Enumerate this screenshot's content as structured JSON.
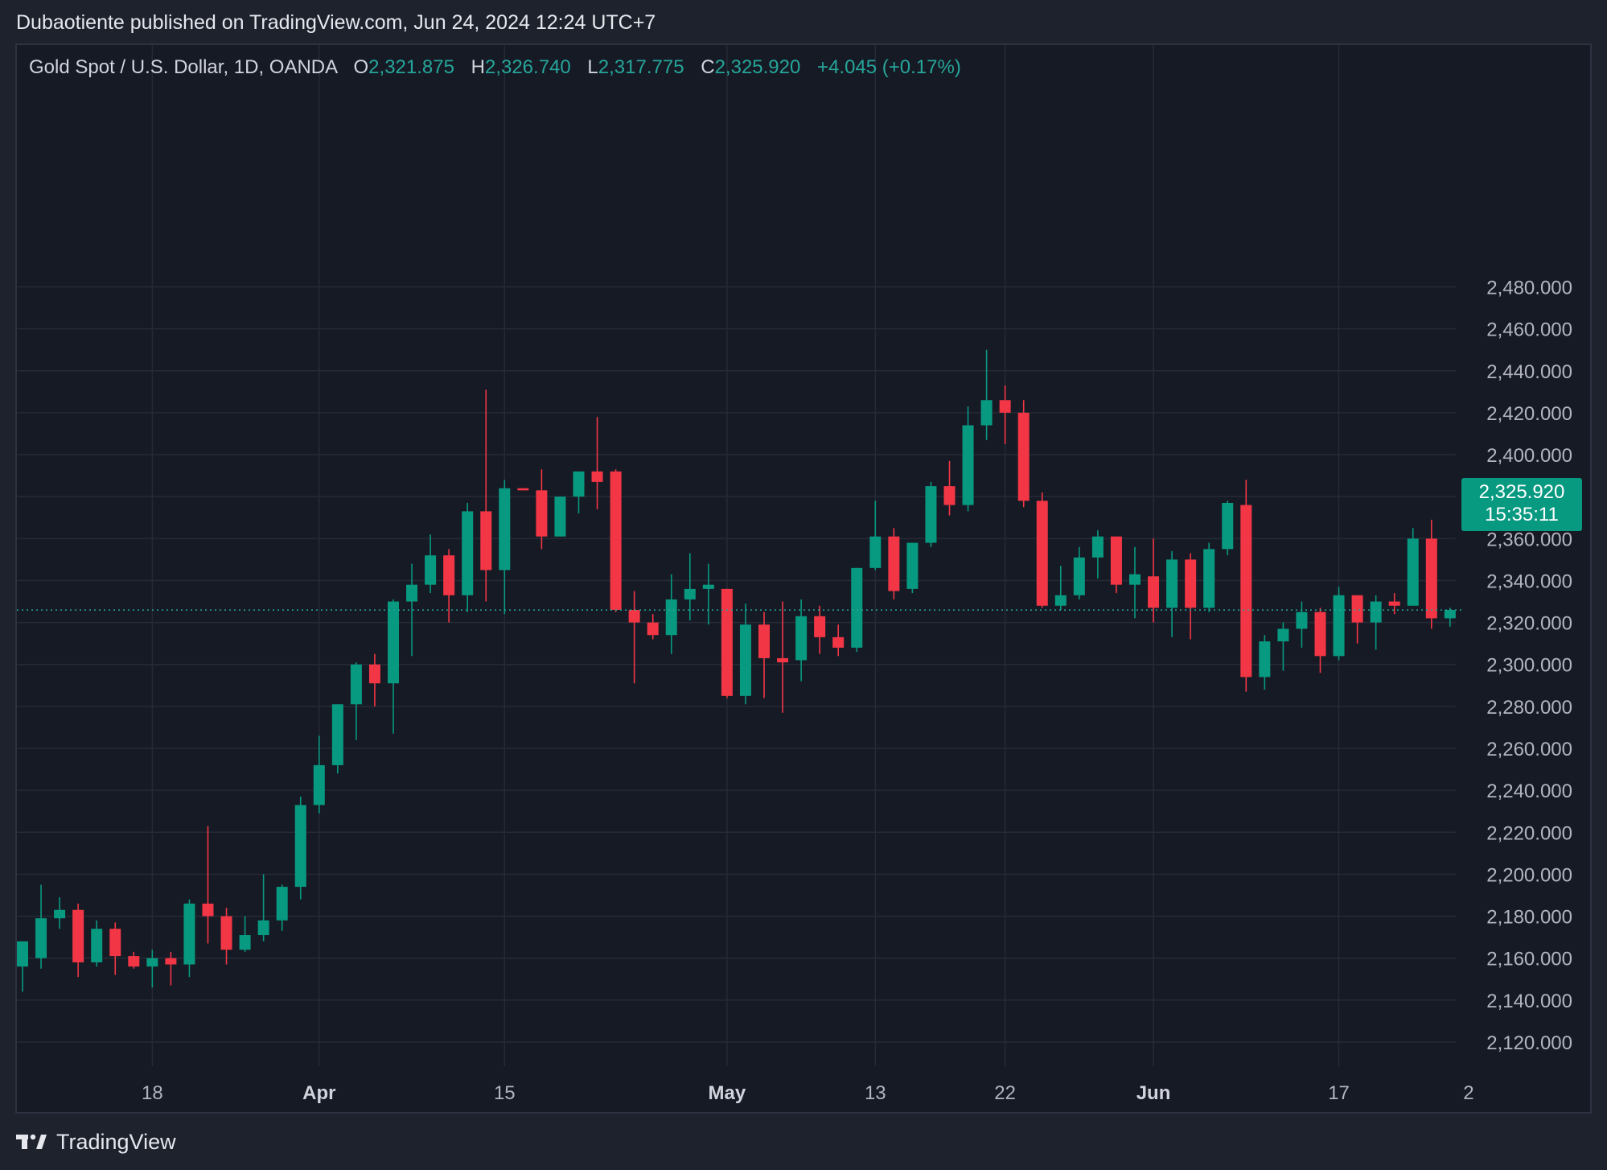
{
  "header": {
    "published_line": "Dubaotiente published on TradingView.com, Jun 24, 2024 12:24 UTC+7"
  },
  "legend": {
    "symbol": "Gold Spot / U.S. Dollar, 1D, OANDA",
    "open_key": "O",
    "open": "2,321.875",
    "high_key": "H",
    "high": "2,326.740",
    "low_key": "L",
    "low": "2,317.775",
    "close_key": "C",
    "close": "2,325.920",
    "change": "+4.045 (+0.17%)"
  },
  "price_tag": {
    "price": "2,325.920",
    "countdown": "15:35:11"
  },
  "footer": {
    "brand": "TradingView"
  },
  "colors": {
    "up": "#089981",
    "down": "#f23645",
    "bg": "#161a25",
    "grid": "#252a36",
    "axis_text": "#b2b5be",
    "last_price_line": "#26a69a"
  },
  "chart_data": {
    "type": "candlestick",
    "title": "Gold Spot / U.S. Dollar, 1D, OANDA",
    "y_range": [
      2110,
      2490
    ],
    "y_ticks": [
      2120,
      2140,
      2160,
      2180,
      2200,
      2220,
      2240,
      2260,
      2280,
      2300,
      2320,
      2340,
      2360,
      2380,
      2400,
      2420,
      2440,
      2460,
      2480
    ],
    "y_tick_labels": [
      "2,120.000",
      "2,140.000",
      "2,160.000",
      "2,180.000",
      "2,200.000",
      "2,220.000",
      "2,240.000",
      "2,260.000",
      "2,280.000",
      "2,300.000",
      "2,320.000",
      "2,340.000",
      "2,360.000",
      "2,380.000",
      "2,400.000",
      "2,420.000",
      "2,440.000",
      "2,460.000",
      "2,480.000"
    ],
    "x_labels": [
      {
        "label": "18",
        "bar": 7,
        "bold": false
      },
      {
        "label": "Apr",
        "bar": 16,
        "bold": true
      },
      {
        "label": "15",
        "bar": 26,
        "bold": false
      },
      {
        "label": "May",
        "bar": 38,
        "bold": true
      },
      {
        "label": "13",
        "bar": 46,
        "bold": false
      },
      {
        "label": "22",
        "bar": 53,
        "bold": false
      },
      {
        "label": "Jun",
        "bar": 61,
        "bold": true
      },
      {
        "label": "17",
        "bar": 71,
        "bold": false
      },
      {
        "label": "2",
        "bar": 78,
        "bold": false
      }
    ],
    "last_price": 2325.92,
    "candles": [
      {
        "o": 2156,
        "h": 2165,
        "l": 2144,
        "c": 2168
      },
      {
        "o": 2160,
        "h": 2195,
        "l": 2155,
        "c": 2179
      },
      {
        "o": 2179,
        "h": 2189,
        "l": 2174,
        "c": 2183
      },
      {
        "o": 2183,
        "h": 2186,
        "l": 2151,
        "c": 2158
      },
      {
        "o": 2158,
        "h": 2178,
        "l": 2156,
        "c": 2174
      },
      {
        "o": 2174,
        "h": 2177,
        "l": 2152,
        "c": 2161
      },
      {
        "o": 2161,
        "h": 2163,
        "l": 2155,
        "c": 2156
      },
      {
        "o": 2156,
        "h": 2164,
        "l": 2146,
        "c": 2160
      },
      {
        "o": 2160,
        "h": 2163,
        "l": 2147,
        "c": 2157
      },
      {
        "o": 2157,
        "h": 2188,
        "l": 2151,
        "c": 2186
      },
      {
        "o": 2186,
        "h": 2223,
        "l": 2167,
        "c": 2180
      },
      {
        "o": 2180,
        "h": 2184,
        "l": 2157,
        "c": 2164
      },
      {
        "o": 2164,
        "h": 2180,
        "l": 2163,
        "c": 2171
      },
      {
        "o": 2171,
        "h": 2200,
        "l": 2168,
        "c": 2178
      },
      {
        "o": 2178,
        "h": 2195,
        "l": 2173,
        "c": 2194
      },
      {
        "o": 2194,
        "h": 2237,
        "l": 2188,
        "c": 2233
      },
      {
        "o": 2233,
        "h": 2266,
        "l": 2229,
        "c": 2252
      },
      {
        "o": 2252,
        "h": 2281,
        "l": 2248,
        "c": 2281
      },
      {
        "o": 2281,
        "h": 2301,
        "l": 2264,
        "c": 2300
      },
      {
        "o": 2300,
        "h": 2305,
        "l": 2280,
        "c": 2291
      },
      {
        "o": 2291,
        "h": 2331,
        "l": 2267,
        "c": 2330
      },
      {
        "o": 2330,
        "h": 2348,
        "l": 2304,
        "c": 2338
      },
      {
        "o": 2338,
        "h": 2362,
        "l": 2334,
        "c": 2352
      },
      {
        "o": 2352,
        "h": 2355,
        "l": 2320,
        "c": 2333
      },
      {
        "o": 2333,
        "h": 2377,
        "l": 2325,
        "c": 2373
      },
      {
        "o": 2373,
        "h": 2431,
        "l": 2330,
        "c": 2345
      },
      {
        "o": 2345,
        "h": 2388,
        "l": 2324,
        "c": 2384
      },
      {
        "o": 2384,
        "h": 2384,
        "l": 2383,
        "c": 2383
      },
      {
        "o": 2383,
        "h": 2393,
        "l": 2355,
        "c": 2361
      },
      {
        "o": 2361,
        "h": 2380,
        "l": 2361,
        "c": 2380
      },
      {
        "o": 2380,
        "h": 2392,
        "l": 2372,
        "c": 2392
      },
      {
        "o": 2392,
        "h": 2418,
        "l": 2374,
        "c": 2387
      },
      {
        "o": 2392,
        "h": 2393,
        "l": 2325,
        "c": 2326
      },
      {
        "o": 2326,
        "h": 2335,
        "l": 2291,
        "c": 2320
      },
      {
        "o": 2320,
        "h": 2324,
        "l": 2312,
        "c": 2314
      },
      {
        "o": 2314,
        "h": 2343,
        "l": 2305,
        "c": 2331
      },
      {
        "o": 2331,
        "h": 2353,
        "l": 2321,
        "c": 2336
      },
      {
        "o": 2336,
        "h": 2348,
        "l": 2319,
        "c": 2338
      },
      {
        "o": 2336,
        "h": 2336,
        "l": 2284,
        "c": 2285
      },
      {
        "o": 2285,
        "h": 2329,
        "l": 2281,
        "c": 2319
      },
      {
        "o": 2319,
        "h": 2325,
        "l": 2284,
        "c": 2303
      },
      {
        "o": 2303,
        "h": 2330,
        "l": 2277,
        "c": 2301
      },
      {
        "o": 2302,
        "h": 2331,
        "l": 2292,
        "c": 2323
      },
      {
        "o": 2323,
        "h": 2328,
        "l": 2305,
        "c": 2313
      },
      {
        "o": 2313,
        "h": 2319,
        "l": 2304,
        "c": 2308
      },
      {
        "o": 2308,
        "h": 2346,
        "l": 2306,
        "c": 2346
      },
      {
        "o": 2346,
        "h": 2378,
        "l": 2345,
        "c": 2361
      },
      {
        "o": 2361,
        "h": 2365,
        "l": 2331,
        "c": 2335
      },
      {
        "o": 2336,
        "h": 2358,
        "l": 2334,
        "c": 2358
      },
      {
        "o": 2358,
        "h": 2387,
        "l": 2356,
        "c": 2385
      },
      {
        "o": 2385,
        "h": 2397,
        "l": 2371,
        "c": 2376
      },
      {
        "o": 2376,
        "h": 2423,
        "l": 2373,
        "c": 2414
      },
      {
        "o": 2414,
        "h": 2450,
        "l": 2407,
        "c": 2426
      },
      {
        "o": 2426,
        "h": 2433,
        "l": 2405,
        "c": 2420
      },
      {
        "o": 2420,
        "h": 2426,
        "l": 2375,
        "c": 2378
      },
      {
        "o": 2378,
        "h": 2382,
        "l": 2327,
        "c": 2328
      },
      {
        "o": 2328,
        "h": 2347,
        "l": 2326,
        "c": 2333
      },
      {
        "o": 2333,
        "h": 2356,
        "l": 2331,
        "c": 2351
      },
      {
        "o": 2351,
        "h": 2364,
        "l": 2341,
        "c": 2361
      },
      {
        "o": 2361,
        "h": 2361,
        "l": 2334,
        "c": 2338
      },
      {
        "o": 2338,
        "h": 2356,
        "l": 2322,
        "c": 2343
      },
      {
        "o": 2342,
        "h": 2360,
        "l": 2320,
        "c": 2327
      },
      {
        "o": 2327,
        "h": 2354,
        "l": 2313,
        "c": 2350
      },
      {
        "o": 2350,
        "h": 2353,
        "l": 2312,
        "c": 2327
      },
      {
        "o": 2327,
        "h": 2358,
        "l": 2325,
        "c": 2355
      },
      {
        "o": 2355,
        "h": 2378,
        "l": 2352,
        "c": 2377
      },
      {
        "o": 2376,
        "h": 2388,
        "l": 2287,
        "c": 2294
      },
      {
        "o": 2294,
        "h": 2314,
        "l": 2288,
        "c": 2311
      },
      {
        "o": 2311,
        "h": 2320,
        "l": 2297,
        "c": 2317
      },
      {
        "o": 2317,
        "h": 2330,
        "l": 2308,
        "c": 2325
      },
      {
        "o": 2325,
        "h": 2327,
        "l": 2296,
        "c": 2304
      },
      {
        "o": 2304,
        "h": 2337,
        "l": 2302,
        "c": 2333
      },
      {
        "o": 2333,
        "h": 2333,
        "l": 2310,
        "c": 2320
      },
      {
        "o": 2320,
        "h": 2333,
        "l": 2307,
        "c": 2330
      },
      {
        "o": 2330,
        "h": 2334,
        "l": 2324,
        "c": 2328
      },
      {
        "o": 2328,
        "h": 2365,
        "l": 2328,
        "c": 2360
      },
      {
        "o": 2360,
        "h": 2369,
        "l": 2317,
        "c": 2322
      },
      {
        "o": 2322,
        "h": 2327,
        "l": 2318,
        "c": 2326
      }
    ]
  }
}
